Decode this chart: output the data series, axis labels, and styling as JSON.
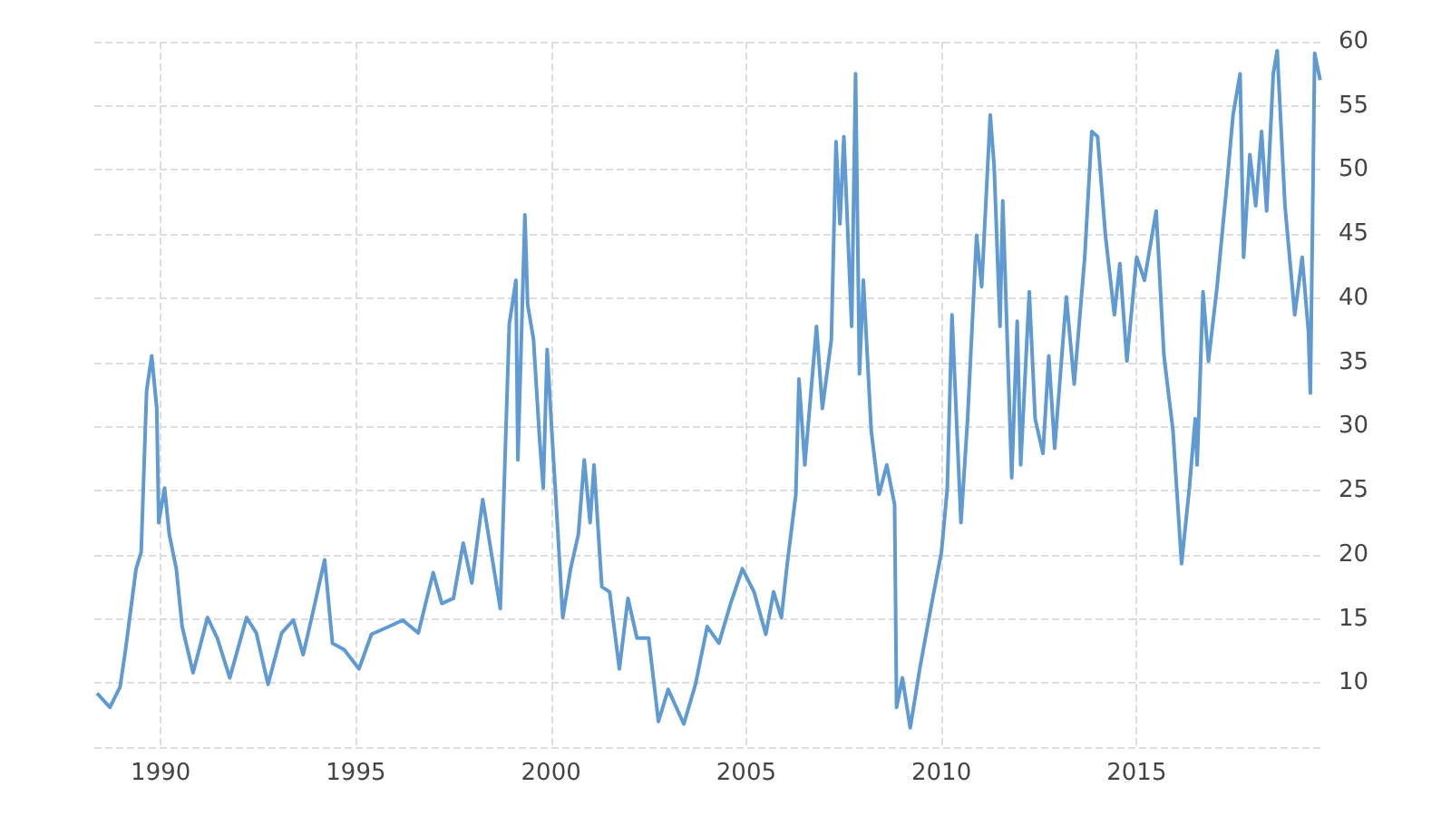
{
  "chart_data": {
    "type": "line",
    "x": [
      1988.37,
      1988.7,
      1988.96,
      1989.1,
      1989.37,
      1989.5,
      1989.64,
      1989.77,
      1989.9,
      1989.95,
      1990.1,
      1990.22,
      1990.4,
      1990.55,
      1990.83,
      1991.2,
      1991.45,
      1991.77,
      1992.2,
      1992.45,
      1992.75,
      1993.1,
      1993.4,
      1993.65,
      1993.95,
      1994.2,
      1994.4,
      1994.7,
      1995.08,
      1995.4,
      1995.85,
      1996.2,
      1996.6,
      1996.98,
      1997.2,
      1997.5,
      1997.75,
      1997.97,
      1998.25,
      1998.7,
      1998.93,
      1999.1,
      1999.15,
      1999.33,
      1999.4,
      1999.55,
      1999.7,
      1999.8,
      1999.9,
      2000.0,
      2000.15,
      2000.3,
      2000.5,
      2000.7,
      2000.85,
      2001.0,
      2001.1,
      2001.3,
      2001.5,
      2001.75,
      2001.97,
      2002.2,
      2002.5,
      2002.75,
      2003.0,
      2003.4,
      2003.7,
      2004.0,
      2004.3,
      2004.6,
      2004.9,
      2005.2,
      2005.5,
      2005.7,
      2005.9,
      2006.05,
      2006.27,
      2006.35,
      2006.5,
      2006.8,
      2006.95,
      2007.18,
      2007.3,
      2007.4,
      2007.5,
      2007.7,
      2007.8,
      2007.9,
      2008.0,
      2008.2,
      2008.4,
      2008.6,
      2008.8,
      2008.85,
      2009.0,
      2009.2,
      2009.45,
      2009.75,
      2010.0,
      2010.15,
      2010.27,
      2010.5,
      2010.67,
      2010.9,
      2011.03,
      2011.25,
      2011.35,
      2011.5,
      2011.57,
      2011.8,
      2011.94,
      2012.03,
      2012.25,
      2012.4,
      2012.6,
      2012.75,
      2012.9,
      2013.2,
      2013.4,
      2013.67,
      2013.85,
      2014.0,
      2014.2,
      2014.43,
      2014.57,
      2014.75,
      2015.0,
      2015.2,
      2015.5,
      2015.7,
      2015.93,
      2016.15,
      2016.35,
      2016.5,
      2016.55,
      2016.7,
      2016.84,
      2017.06,
      2017.3,
      2017.47,
      2017.65,
      2017.74,
      2017.9,
      2018.05,
      2018.2,
      2018.33,
      2018.5,
      2018.6,
      2018.8,
      2019.05,
      2019.24,
      2019.4,
      2019.45,
      2019.56,
      2019.7
    ],
    "series": [
      {
        "color": "#5f9ad3",
        "values": [
          9.2,
          8.1,
          9.7,
          12.6,
          18.9,
          20.2,
          32.8,
          35.5,
          31.4,
          22.5,
          25.2,
          21.6,
          18.9,
          14.4,
          10.8,
          15.1,
          13.5,
          10.4,
          15.1,
          13.9,
          9.9,
          13.9,
          14.9,
          12.2,
          16.2,
          19.6,
          13.1,
          12.6,
          11.1,
          13.8,
          14.4,
          14.9,
          13.9,
          18.6,
          16.2,
          16.6,
          20.9,
          17.8,
          24.3,
          15.8,
          38.0,
          41.4,
          27.4,
          46.5,
          39.5,
          36.8,
          29.3,
          25.2,
          36.0,
          30.6,
          23.0,
          15.1,
          18.9,
          21.6,
          27.4,
          22.5,
          27.0,
          17.5,
          17.1,
          11.1,
          16.6,
          13.5,
          13.5,
          7.0,
          9.5,
          6.8,
          9.9,
          14.4,
          13.1,
          16.2,
          18.9,
          17.1,
          13.8,
          17.1,
          15.1,
          19.3,
          24.7,
          33.7,
          27.0,
          37.8,
          31.4,
          36.8,
          52.2,
          45.8,
          52.6,
          37.8,
          57.5,
          34.1,
          41.4,
          29.7,
          24.7,
          27.0,
          23.9,
          8.1,
          10.4,
          6.5,
          11.2,
          16.2,
          20.2,
          25.2,
          38.7,
          22.5,
          30.6,
          44.9,
          40.9,
          54.3,
          50.3,
          37.8,
          47.6,
          26.0,
          38.2,
          27.0,
          40.5,
          30.6,
          27.9,
          35.5,
          28.3,
          40.1,
          33.3,
          43.2,
          53.0,
          52.6,
          44.9,
          38.7,
          42.7,
          35.1,
          43.2,
          41.4,
          46.8,
          35.5,
          29.7,
          19.3,
          25.2,
          30.6,
          27.0,
          40.5,
          35.1,
          40.9,
          48.5,
          54.3,
          57.5,
          43.2,
          51.2,
          47.2,
          53.0,
          46.8,
          57.5,
          59.3,
          47.2,
          38.7,
          43.2,
          37.4,
          32.6,
          59.1,
          57.0
        ]
      }
    ],
    "xlim": [
      1988.3,
      2019.8
    ],
    "xticks": [
      1990,
      1995,
      2000,
      2005,
      2010,
      2015
    ],
    "ylim": [
      5,
      60
    ],
    "yticks": [
      {
        "value": 5,
        "label": null
      },
      10,
      15,
      20,
      25,
      30,
      35,
      40,
      45,
      50,
      55,
      60
    ],
    "grid": true,
    "marker": "none",
    "line_style": "solid"
  }
}
